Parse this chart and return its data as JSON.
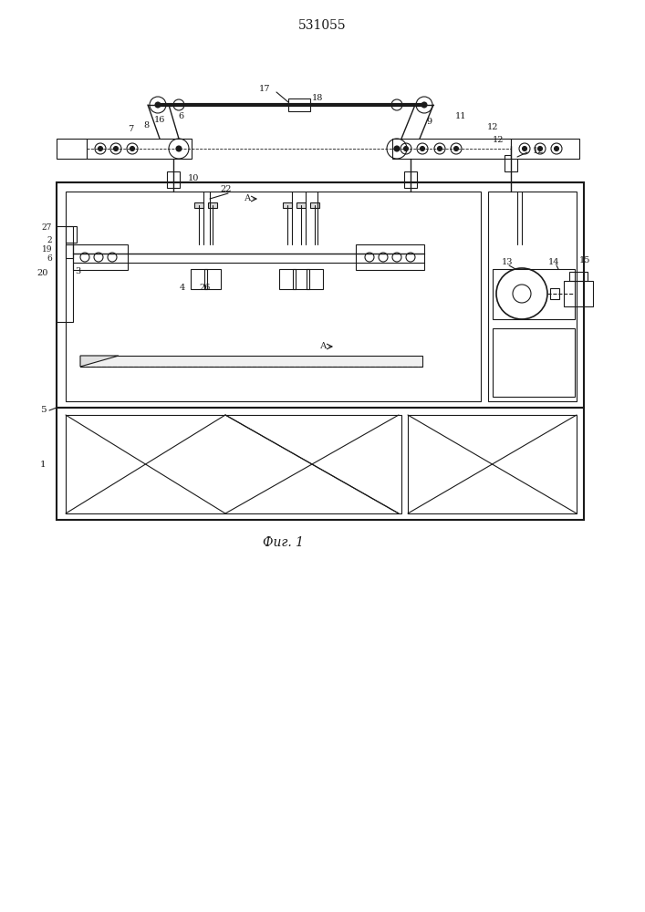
{
  "title": "531055",
  "caption": "Фиг. 1",
  "bg_color": "#ffffff",
  "line_color": "#1a1a1a",
  "title_fontsize": 10,
  "caption_fontsize": 10
}
